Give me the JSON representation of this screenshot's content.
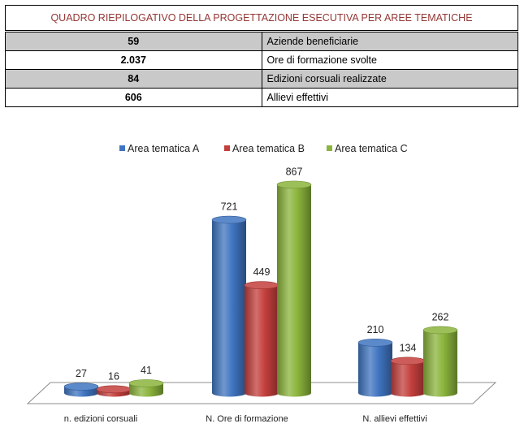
{
  "table": {
    "title": "QUADRO RIEPILOGATIVO DELLA PROGETTAZIONE ESECUTIVA PER AREE TEMATICHE",
    "rows": [
      {
        "value": "59",
        "label": "Aziende beneficiarie",
        "shaded": true
      },
      {
        "value": "2.037",
        "label": "Ore di formazione svolte",
        "shaded": false
      },
      {
        "value": "84",
        "label": "Edizioni corsuali realizzate",
        "shaded": true
      },
      {
        "value": "606",
        "label": "Allievi effettivi",
        "shaded": false
      }
    ]
  },
  "chart_data": {
    "type": "bar",
    "style": "3d-cylinder",
    "categories": [
      "n. edizioni corsuali",
      "N. Ore di formazione",
      "N. allievi effettivi"
    ],
    "series": [
      {
        "name": "Area tematica A",
        "color": "#3f74c0",
        "values": [
          27,
          721,
          210
        ]
      },
      {
        "name": "Area tematica B",
        "color": "#c33f3c",
        "values": [
          16,
          449,
          134
        ]
      },
      {
        "name": "Area tematica C",
        "color": "#8bb43c",
        "values": [
          41,
          867,
          262
        ]
      }
    ],
    "legend_position": "top",
    "grid": false,
    "ylim": [
      0,
      1000
    ]
  }
}
